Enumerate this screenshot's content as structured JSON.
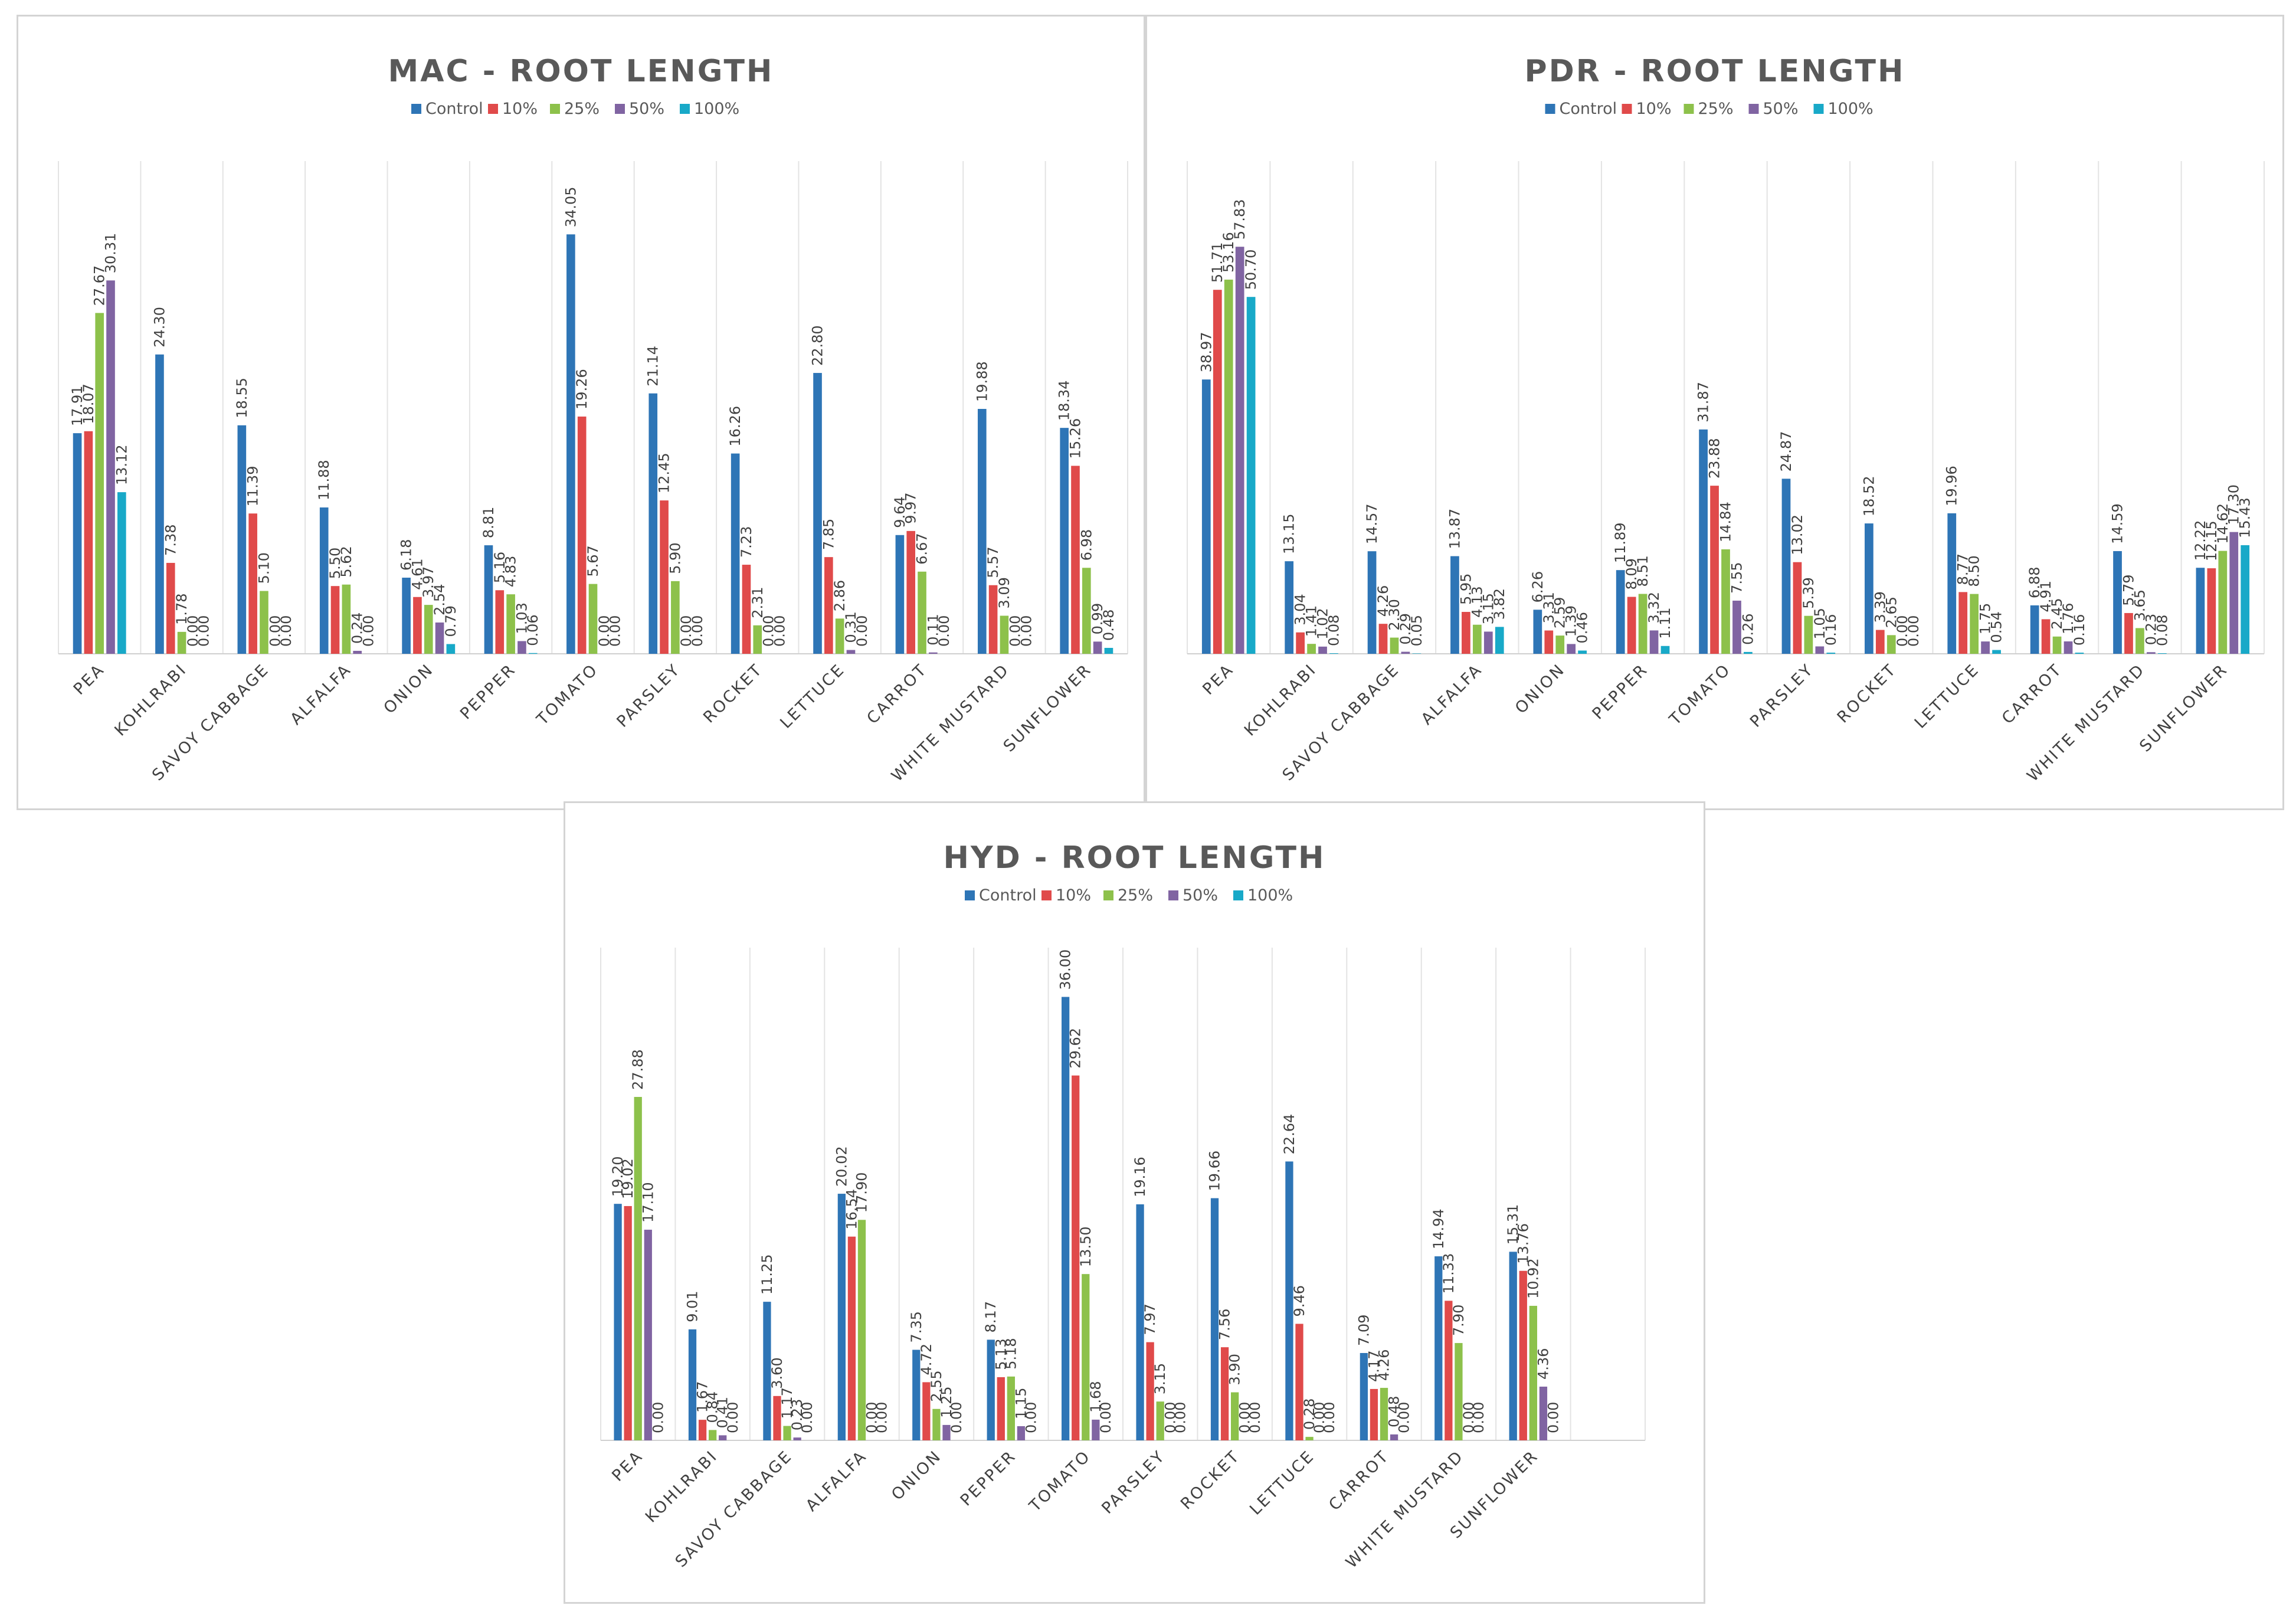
{
  "colors": {
    "Control": "#2e75b6",
    "10%": "#e04a4a",
    "25%": "#8dc14b",
    "50%": "#8064a2",
    "100%": "#18a9c8"
  },
  "chart_data": [
    {
      "type": "bar",
      "title": "MAC - ROOT LENGTH",
      "categories": [
        "PEA",
        "KOHLRABI",
        "SAVOY CABBAGE",
        "ALFALFA",
        "ONION",
        "PEPPER",
        "TOMATO",
        "PARSLEY",
        "ROCKET",
        "LETTUCE",
        "CARROT",
        "WHITE MUSTARD",
        "SUNFLOWER"
      ],
      "series": [
        {
          "name": "Control",
          "values": [
            17.91,
            24.3,
            18.55,
            11.88,
            6.18,
            8.81,
            34.05,
            21.14,
            16.26,
            22.8,
            9.64,
            19.88,
            18.34
          ]
        },
        {
          "name": "10%",
          "values": [
            18.07,
            7.38,
            11.39,
            5.5,
            4.61,
            5.16,
            19.26,
            12.45,
            7.23,
            7.85,
            9.97,
            5.57,
            15.26
          ]
        },
        {
          "name": "25%",
          "values": [
            27.67,
            1.78,
            5.1,
            5.62,
            3.97,
            4.83,
            5.67,
            5.9,
            2.31,
            2.86,
            6.67,
            3.09,
            6.98
          ]
        },
        {
          "name": "50%",
          "values": [
            30.31,
            0.0,
            0.0,
            0.24,
            2.54,
            1.03,
            0.0,
            0.0,
            0.0,
            0.31,
            0.11,
            0.0,
            0.99
          ]
        },
        {
          "name": "100%",
          "values": [
            13.12,
            0.0,
            0.0,
            0.0,
            0.79,
            0.06,
            0.0,
            0.0,
            0.0,
            0.0,
            0.0,
            0.0,
            0.48
          ]
        }
      ],
      "ylim": [
        0,
        40
      ],
      "xlabel": "",
      "ylabel": "",
      "grid": false,
      "legend": "top-center"
    },
    {
      "type": "bar",
      "title": "PDR - ROOT LENGTH",
      "categories": [
        "PEA",
        "KOHLRABI",
        "SAVOY CABBAGE",
        "ALFALFA",
        "ONION",
        "PEPPER",
        "TOMATO",
        "PARSLEY",
        "ROCKET",
        "LETTUCE",
        "CARROT",
        "WHITE MUSTARD",
        "SUNFLOWER"
      ],
      "series": [
        {
          "name": "Control",
          "values": [
            38.97,
            13.15,
            14.57,
            13.87,
            6.26,
            11.89,
            31.87,
            24.87,
            18.52,
            19.96,
            6.88,
            14.59,
            12.22
          ]
        },
        {
          "name": "10%",
          "values": [
            51.71,
            3.04,
            4.26,
            5.95,
            3.31,
            8.09,
            23.88,
            13.02,
            3.39,
            8.77,
            4.91,
            5.79,
            12.15
          ]
        },
        {
          "name": "25%",
          "values": [
            53.16,
            1.41,
            2.3,
            4.13,
            2.59,
            8.51,
            14.84,
            5.39,
            2.65,
            8.5,
            2.45,
            3.65,
            14.62
          ]
        },
        {
          "name": "50%",
          "values": [
            57.83,
            1.02,
            0.29,
            3.15,
            1.39,
            3.32,
            7.55,
            1.05,
            0.0,
            1.75,
            1.76,
            0.23,
            17.3
          ]
        },
        {
          "name": "100%",
          "values": [
            50.7,
            0.08,
            0.05,
            3.82,
            0.46,
            1.11,
            0.26,
            0.16,
            0.0,
            0.54,
            0.16,
            0.08,
            15.43
          ]
        }
      ],
      "ylim": [
        0,
        70
      ],
      "xlabel": "",
      "ylabel": "",
      "grid": false,
      "legend": "top-center"
    },
    {
      "type": "bar",
      "title": "HYD - ROOT LENGTH",
      "categories": [
        "PEA",
        "KOHLRABI",
        "SAVOY CABBAGE",
        "ALFALFA",
        "ONION",
        "PEPPER",
        "TOMATO",
        "PARSLEY",
        "ROCKET",
        "LETTUCE",
        "CARROT",
        "WHITE MUSTARD",
        "SUNFLOWER"
      ],
      "series": [
        {
          "name": "Control",
          "values": [
            19.2,
            9.01,
            11.25,
            20.02,
            7.35,
            8.17,
            36.0,
            19.16,
            19.66,
            22.64,
            7.09,
            14.94,
            15.31
          ]
        },
        {
          "name": "10%",
          "values": [
            19.02,
            1.67,
            3.6,
            16.54,
            4.72,
            5.13,
            29.62,
            7.97,
            7.56,
            9.46,
            4.17,
            11.33,
            13.76
          ]
        },
        {
          "name": "25%",
          "values": [
            27.88,
            0.84,
            1.17,
            17.9,
            2.55,
            5.18,
            13.5,
            3.15,
            3.9,
            0.28,
            4.26,
            7.9,
            10.92
          ]
        },
        {
          "name": "50%",
          "values": [
            17.1,
            0.41,
            0.23,
            0.0,
            1.25,
            1.15,
            1.68,
            0.0,
            0.0,
            0.0,
            0.48,
            0.0,
            4.36
          ]
        },
        {
          "name": "100%",
          "values": [
            0.0,
            0.0,
            0.0,
            0.0,
            0.0,
            0.0,
            0.0,
            0.0,
            0.0,
            0.0,
            0.0,
            0.0,
            0.0
          ]
        }
      ],
      "ylim": [
        0,
        40
      ],
      "xlabel": "",
      "ylabel": "",
      "grid": false,
      "legend": "top-center"
    }
  ]
}
